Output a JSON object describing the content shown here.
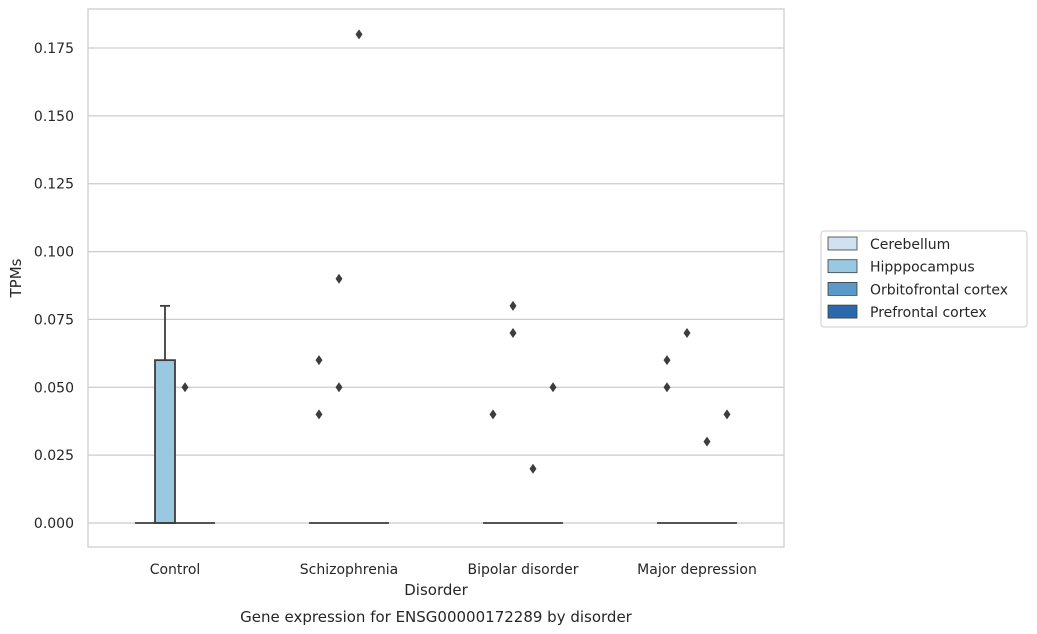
{
  "chart_data": {
    "type": "box",
    "xlabel": "Disorder",
    "ylabel": "TPMs",
    "caption": "Gene expression for ENSG00000172289 by disorder",
    "ylim": [
      -0.009,
      0.19
    ],
    "yticks": [
      "0.000",
      "0.025",
      "0.050",
      "0.075",
      "0.100",
      "0.125",
      "0.150",
      "0.175"
    ],
    "ytick_values": [
      0,
      0.025,
      0.05,
      0.075,
      0.1,
      0.125,
      0.15,
      0.175
    ],
    "grid": "horizontal",
    "legend_position": "right",
    "categories": [
      "Control",
      "Schizophrenia",
      "Bipolar disorder",
      "Major depression"
    ],
    "series": [
      {
        "name": "Cerebellum",
        "color": "#d0e1f2",
        "boxes": [
          {
            "q1": 0,
            "median": 0,
            "q3": 0,
            "whisker_low": 0,
            "whisker_high": 0,
            "outliers": []
          },
          {
            "q1": 0,
            "median": 0,
            "q3": 0,
            "whisker_low": 0,
            "whisker_high": 0,
            "outliers": [
              0.06,
              0.04
            ]
          },
          {
            "q1": 0,
            "median": 0,
            "q3": 0,
            "whisker_low": 0,
            "whisker_high": 0,
            "outliers": [
              0.04
            ]
          },
          {
            "q1": 0,
            "median": 0,
            "q3": 0,
            "whisker_low": 0,
            "whisker_high": 0,
            "outliers": [
              0.06,
              0.05
            ]
          }
        ]
      },
      {
        "name": "Hipppocampus",
        "color": "#9ac8e0",
        "boxes": [
          {
            "q1": 0,
            "median": 0,
            "q3": 0.06,
            "whisker_low": 0,
            "whisker_high": 0.08,
            "outliers": []
          },
          {
            "q1": 0,
            "median": 0,
            "q3": 0,
            "whisker_low": 0,
            "whisker_high": 0,
            "outliers": [
              0.09,
              0.05
            ]
          },
          {
            "q1": 0,
            "median": 0,
            "q3": 0,
            "whisker_low": 0,
            "whisker_high": 0,
            "outliers": [
              0.08,
              0.07
            ]
          },
          {
            "q1": 0,
            "median": 0,
            "q3": 0,
            "whisker_low": 0,
            "whisker_high": 0,
            "outliers": [
              0.07
            ]
          }
        ]
      },
      {
        "name": "Orbitofrontal cortex",
        "color": "#5a9ac8",
        "boxes": [
          {
            "q1": 0,
            "median": 0,
            "q3": 0,
            "whisker_low": 0,
            "whisker_high": 0,
            "outliers": [
              0.05
            ]
          },
          {
            "q1": 0,
            "median": 0,
            "q3": 0,
            "whisker_low": 0,
            "whisker_high": 0,
            "outliers": [
              0.18
            ]
          },
          {
            "q1": 0,
            "median": 0,
            "q3": 0,
            "whisker_low": 0,
            "whisker_high": 0,
            "outliers": [
              0.02
            ]
          },
          {
            "q1": 0,
            "median": 0,
            "q3": 0,
            "whisker_low": 0,
            "whisker_high": 0,
            "outliers": [
              0.03
            ]
          }
        ]
      },
      {
        "name": "Prefrontal cortex",
        "color": "#2a6aaa",
        "boxes": [
          {
            "q1": 0,
            "median": 0,
            "q3": 0,
            "whisker_low": 0,
            "whisker_high": 0,
            "outliers": []
          },
          {
            "q1": 0,
            "median": 0,
            "q3": 0,
            "whisker_low": 0,
            "whisker_high": 0,
            "outliers": []
          },
          {
            "q1": 0,
            "median": 0,
            "q3": 0,
            "whisker_low": 0,
            "whisker_high": 0,
            "outliers": [
              0.05
            ]
          },
          {
            "q1": 0,
            "median": 0,
            "q3": 0,
            "whisker_low": 0,
            "whisker_high": 0,
            "outliers": [
              0.04
            ]
          }
        ]
      }
    ]
  }
}
